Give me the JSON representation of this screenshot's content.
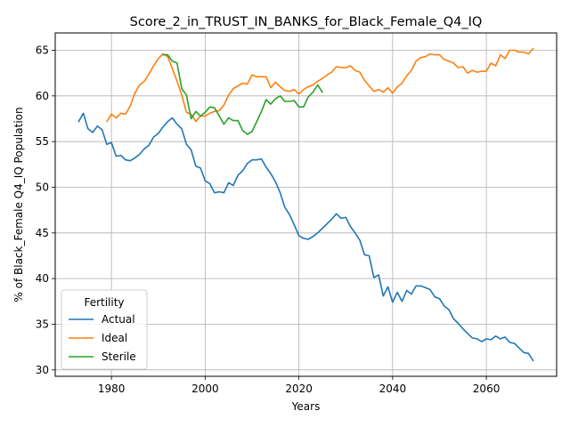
{
  "chart_data": {
    "type": "line",
    "title": "Score_2_in_TRUST_IN_BANKS_for_Black_Female_Q4_IQ",
    "xlabel": "Years",
    "ylabel": "% of Black_Female Q4_IQ Population",
    "xlim": [
      1968,
      2075
    ],
    "ylim": [
      29.3,
      66.9
    ],
    "xticks": [
      1980,
      2000,
      2020,
      2040,
      2060
    ],
    "yticks": [
      30,
      35,
      40,
      45,
      50,
      55,
      60,
      65
    ],
    "grid": true,
    "legend": {
      "title": "Fertility",
      "placement": "lower-left"
    },
    "series": [
      {
        "name": "Actual",
        "color": "#1f77b4",
        "x": [
          1973,
          1974,
          1975,
          1976,
          1977,
          1978,
          1979,
          1980,
          1981,
          1982,
          1983,
          1984,
          1985,
          1986,
          1987,
          1988,
          1989,
          1990,
          1991,
          1992,
          1993,
          1994,
          1995,
          1996,
          1997,
          1998,
          1999,
          2000,
          2001,
          2002,
          2003,
          2004,
          2005,
          2006,
          2007,
          2008,
          2009,
          2010,
          2011,
          2012,
          2013,
          2014,
          2015,
          2016,
          2017,
          2018,
          2019,
          2020,
          2021,
          2022,
          2023,
          2024,
          2025,
          2026,
          2027,
          2028,
          2029,
          2030,
          2031,
          2032,
          2033,
          2034,
          2035,
          2036,
          2037,
          2038,
          2039,
          2040,
          2041,
          2042,
          2043,
          2044,
          2045,
          2046,
          2047,
          2048,
          2049,
          2050,
          2051,
          2052,
          2053,
          2054,
          2055,
          2056,
          2057,
          2058,
          2059,
          2060,
          2061,
          2062,
          2063,
          2064,
          2065,
          2066,
          2067,
          2068,
          2069,
          2070
        ],
        "values": [
          57.2,
          58.1,
          56.4,
          56.0,
          56.7,
          56.3,
          54.7,
          54.9,
          53.4,
          53.5,
          53.0,
          52.9,
          53.2,
          53.6,
          54.2,
          54.6,
          55.5,
          55.9,
          56.6,
          57.2,
          57.6,
          56.9,
          56.4,
          54.7,
          54.1,
          52.3,
          52.1,
          50.7,
          50.4,
          49.4,
          49.5,
          49.4,
          50.5,
          50.2,
          51.3,
          51.8,
          52.6,
          53.0,
          53.0,
          53.1,
          52.2,
          51.5,
          50.6,
          49.4,
          47.8,
          47.0,
          45.9,
          44.7,
          44.4,
          44.3,
          44.6,
          45.0,
          45.5,
          46.0,
          46.5,
          47.1,
          46.6,
          46.7,
          45.7,
          45.0,
          44.2,
          42.6,
          42.5,
          40.1,
          40.4,
          38.1,
          39.1,
          37.4,
          38.5,
          37.5,
          38.7,
          38.3,
          39.2,
          39.2,
          39.0,
          38.8,
          38.0,
          37.8,
          37.0,
          36.6,
          35.6,
          35.1,
          34.5,
          34.0,
          33.5,
          33.4,
          33.1,
          33.4,
          33.3,
          33.7,
          33.4,
          33.6,
          33.0,
          32.9,
          32.4,
          31.9,
          31.8,
          31.0
        ]
      },
      {
        "name": "Ideal",
        "color": "#ff7f0e",
        "x": [
          1979,
          1980,
          1981,
          1982,
          1983,
          1984,
          1985,
          1986,
          1987,
          1988,
          1989,
          1990,
          1991,
          1992,
          1993,
          1994,
          1995,
          1996,
          1997,
          1998,
          1999,
          2000,
          2001,
          2002,
          2003,
          2004,
          2005,
          2006,
          2007,
          2008,
          2009,
          2010,
          2011,
          2012,
          2013,
          2014,
          2015,
          2016,
          2017,
          2018,
          2019,
          2020,
          2021,
          2022,
          2023,
          2024,
          2025,
          2026,
          2027,
          2028,
          2029,
          2030,
          2031,
          2032,
          2033,
          2034,
          2035,
          2036,
          2037,
          2038,
          2039,
          2040,
          2041,
          2042,
          2043,
          2044,
          2045,
          2046,
          2047,
          2048,
          2049,
          2050,
          2051,
          2052,
          2053,
          2054,
          2055,
          2056,
          2057,
          2058,
          2059,
          2060,
          2061,
          2062,
          2063,
          2064,
          2065,
          2066,
          2067,
          2068,
          2069,
          2070
        ],
        "values": [
          57.2,
          58.0,
          57.6,
          58.1,
          58.0,
          58.9,
          60.3,
          61.2,
          61.6,
          62.4,
          63.3,
          64.1,
          64.6,
          64.3,
          63.0,
          61.6,
          60.1,
          58.2,
          58.0,
          57.2,
          57.8,
          57.8,
          58.1,
          58.3,
          58.4,
          59.0,
          60.1,
          60.8,
          61.1,
          61.4,
          61.3,
          62.3,
          62.1,
          62.1,
          62.1,
          60.9,
          61.5,
          61.0,
          60.6,
          60.5,
          60.7,
          60.2,
          60.7,
          61.0,
          61.2,
          61.6,
          61.9,
          62.3,
          62.6,
          63.2,
          63.1,
          63.1,
          63.3,
          62.8,
          62.6,
          61.7,
          61.1,
          60.5,
          60.7,
          60.4,
          60.9,
          60.3,
          61.0,
          61.4,
          62.2,
          62.8,
          63.8,
          64.2,
          64.3,
          64.6,
          64.5,
          64.5,
          64.0,
          63.8,
          63.6,
          63.1,
          63.2,
          62.5,
          62.8,
          62.6,
          62.7,
          62.7,
          63.6,
          63.3,
          64.5,
          64.1,
          65.0,
          65.0,
          64.8,
          64.8,
          64.6,
          65.2
        ]
      },
      {
        "name": "Sterile",
        "color": "#2ca02c",
        "x": [
          1991,
          1992,
          1993,
          1994,
          1995,
          1996,
          1997,
          1998,
          1999,
          2000,
          2001,
          2002,
          2003,
          2004,
          2005,
          2006,
          2007,
          2008,
          2009,
          2010,
          2011,
          2012,
          2013,
          2014,
          2015,
          2016,
          2017,
          2018,
          2019,
          2020,
          2021,
          2022,
          2023,
          2024,
          2025
        ],
        "values": [
          64.5,
          64.5,
          63.8,
          63.6,
          60.8,
          60.1,
          57.5,
          58.3,
          57.8,
          58.2,
          58.8,
          58.7,
          57.8,
          56.9,
          57.6,
          57.3,
          57.3,
          56.2,
          55.8,
          56.1,
          57.2,
          58.3,
          59.6,
          59.1,
          59.7,
          60.0,
          59.4,
          59.4,
          59.5,
          58.8,
          58.8,
          59.9,
          60.4,
          61.2,
          60.4
        ]
      }
    ]
  }
}
